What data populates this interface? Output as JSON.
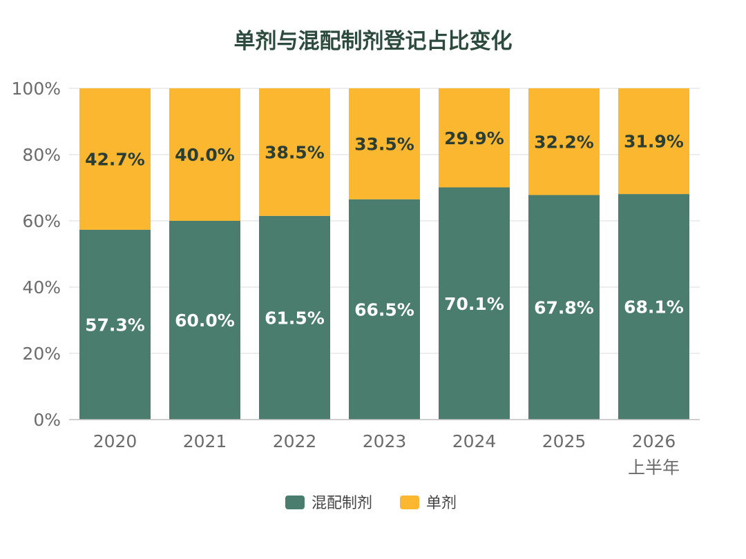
{
  "chart_data": {
    "type": "bar",
    "stacked": true,
    "title": "单剂与混配制剂登记占比变化",
    "categories": [
      "2020",
      "2021",
      "2022",
      "2023",
      "2024",
      "2025",
      "2026"
    ],
    "category_sublabels": [
      "",
      "",
      "",
      "",
      "",
      "",
      "上半年"
    ],
    "series": [
      {
        "name": "混配制剂",
        "color": "#4b7d6f",
        "values": [
          57.3,
          60.0,
          61.5,
          66.5,
          70.1,
          67.8,
          68.1
        ],
        "labels": [
          "57.3%",
          "60.0%",
          "61.5%",
          "66.5%",
          "70.1%",
          "67.8%",
          "68.1%"
        ]
      },
      {
        "name": "单剂",
        "color": "#fbb730",
        "values": [
          42.7,
          40.0,
          38.5,
          33.5,
          29.9,
          32.2,
          31.9
        ],
        "labels": [
          "42.7%",
          "40.0%",
          "38.5%",
          "33.5%",
          "29.9%",
          "32.2%",
          "31.9%"
        ]
      }
    ],
    "ylim": [
      0,
      100
    ],
    "yticks": [
      "0%",
      "20%",
      "40%",
      "60%",
      "80%",
      "100%"
    ],
    "ytick_values": [
      0,
      20,
      40,
      60,
      80,
      100
    ],
    "grid": true,
    "legend_position": "bottom-center"
  }
}
